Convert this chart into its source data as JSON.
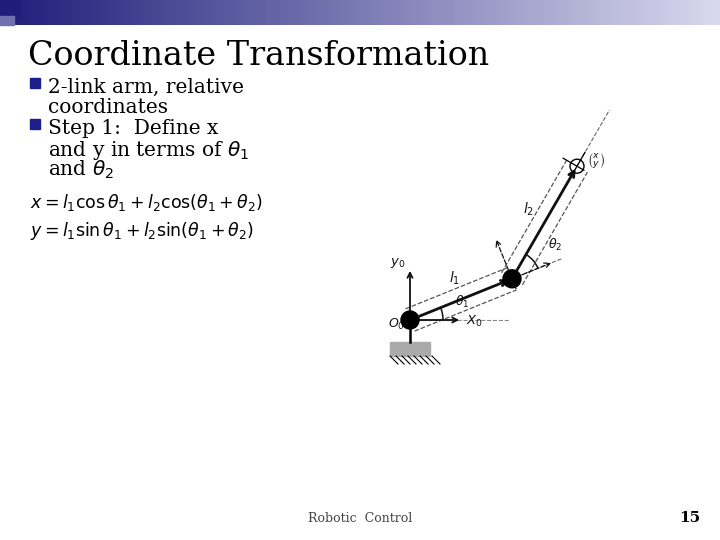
{
  "title": "Coordinate Transformation",
  "footer": "Robotic  Control",
  "page": "15",
  "bg_color": "#ffffff",
  "text_color": "#000000",
  "title_color": "#000000",
  "header_gradient_left": "#1e1e7a",
  "header_gradient_right": "#d8d8ee",
  "bullet_square_color": "#1e1e8a",
  "theta1_deg": 22,
  "theta2_deg": 38,
  "L1": 110,
  "L2": 130,
  "ox": 410,
  "oy": 220
}
